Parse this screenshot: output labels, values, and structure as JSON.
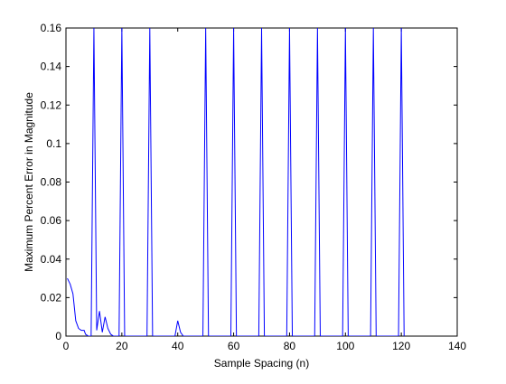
{
  "chart_data": {
    "type": "line",
    "title": "",
    "xlabel": "Sample Spacing (n)",
    "ylabel": "Maximum Percent Error in Magnitude",
    "xlim": [
      0,
      140
    ],
    "ylim": [
      0,
      0.16
    ],
    "xticks": [
      0,
      20,
      40,
      60,
      80,
      100,
      120,
      140
    ],
    "yticks": [
      0,
      0.02,
      0.04,
      0.06,
      0.08,
      0.1,
      0.12,
      0.14,
      0.16
    ],
    "xtick_labels": [
      "0",
      "20",
      "40",
      "60",
      "80",
      "100",
      "120",
      "140"
    ],
    "ytick_labels": [
      "0",
      "0.02",
      "0.04",
      "0.06",
      "0.08",
      "0.1",
      "0.12",
      "0.14",
      "0.16"
    ],
    "grid": false,
    "legend": "none",
    "series_color": "#0000ff",
    "series": [
      {
        "x": [
          0.5,
          1.5,
          2.5,
          3.5,
          4.5,
          5.5,
          6.5,
          7,
          8,
          9,
          10,
          11,
          12,
          13,
          14,
          15,
          16,
          17,
          18,
          19,
          20,
          21,
          22,
          23,
          24,
          25,
          26,
          27,
          28,
          29,
          30,
          31,
          32,
          33,
          34,
          35,
          36,
          37,
          38,
          39,
          40,
          41,
          42,
          43,
          44,
          45,
          46,
          47,
          48,
          49,
          50,
          51,
          52,
          53,
          54,
          55,
          56,
          57,
          58,
          59,
          60,
          61,
          62,
          63,
          64,
          65,
          66,
          67,
          68,
          69,
          70,
          71,
          72,
          73,
          74,
          75,
          76,
          77,
          78,
          79,
          80,
          81,
          82,
          83,
          84,
          85,
          86,
          87,
          88,
          89,
          90,
          91,
          92,
          93,
          94,
          95,
          96,
          97,
          98,
          99,
          100,
          101,
          102,
          103,
          104,
          105,
          106,
          107,
          108,
          109,
          110,
          111,
          112,
          113,
          114,
          115,
          116,
          117,
          118,
          119,
          120,
          121
        ],
        "y": [
          0.03,
          0.027,
          0.022,
          0.008,
          0.004,
          0.003,
          0.003,
          0.001,
          0,
          0,
          0.16,
          0.003,
          0.013,
          0.002,
          0.01,
          0.004,
          0.001,
          0,
          0,
          0,
          0.16,
          0,
          0,
          0,
          0,
          0,
          0,
          0,
          0,
          0,
          0.16,
          0,
          0,
          0,
          0,
          0,
          0,
          0,
          0,
          0,
          0.008,
          0.002,
          0,
          0,
          0,
          0,
          0,
          0,
          0,
          0,
          0.16,
          0,
          0,
          0,
          0,
          0,
          0,
          0,
          0,
          0,
          0.16,
          0,
          0,
          0,
          0,
          0,
          0,
          0,
          0,
          0,
          0.16,
          0,
          0,
          0,
          0,
          0,
          0,
          0,
          0,
          0,
          0.16,
          0,
          0,
          0,
          0,
          0,
          0,
          0,
          0,
          0,
          0.16,
          0,
          0,
          0,
          0,
          0,
          0,
          0,
          0,
          0,
          0.16,
          0,
          0,
          0,
          0,
          0,
          0,
          0,
          0,
          0,
          0.16,
          0,
          0,
          0,
          0,
          0,
          0,
          0,
          0,
          0,
          0.16,
          0
        ]
      }
    ]
  }
}
